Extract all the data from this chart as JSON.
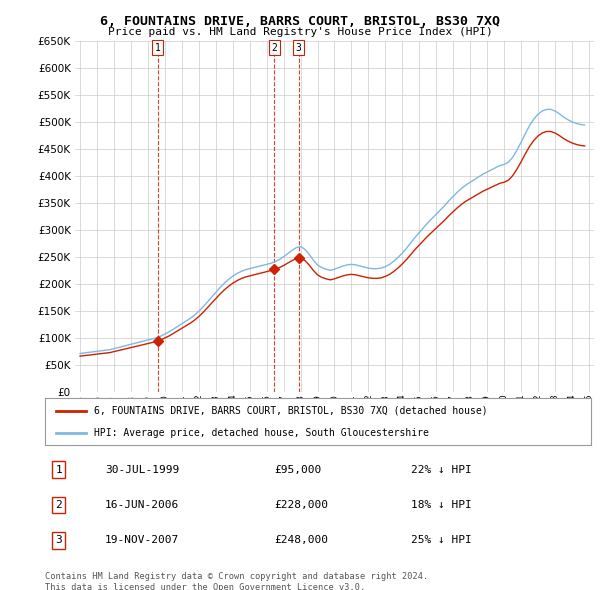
{
  "title": "6, FOUNTAINS DRIVE, BARRS COURT, BRISTOL, BS30 7XQ",
  "subtitle": "Price paid vs. HM Land Registry's House Price Index (HPI)",
  "legend_line1": "6, FOUNTAINS DRIVE, BARRS COURT, BRISTOL, BS30 7XQ (detached house)",
  "legend_line2": "HPI: Average price, detached house, South Gloucestershire",
  "footer1": "Contains HM Land Registry data © Crown copyright and database right 2024.",
  "footer2": "This data is licensed under the Open Government Licence v3.0.",
  "transactions": [
    {
      "num": 1,
      "date": "30-JUL-1999",
      "price": "£95,000",
      "pct": "22% ↓ HPI",
      "year": 1999.58
    },
    {
      "num": 2,
      "date": "16-JUN-2006",
      "price": "£228,000",
      "pct": "18% ↓ HPI",
      "year": 2006.46
    },
    {
      "num": 3,
      "date": "19-NOV-2007",
      "price": "£248,000",
      "pct": "25% ↓ HPI",
      "year": 2007.88
    }
  ],
  "transaction_prices": [
    95000,
    228000,
    248000
  ],
  "ylim": [
    0,
    650000
  ],
  "yticks": [
    0,
    50000,
    100000,
    150000,
    200000,
    250000,
    300000,
    350000,
    400000,
    450000,
    500000,
    550000,
    600000,
    650000
  ],
  "hpi_color": "#7fb8e0",
  "price_color": "#cc2200",
  "dashed_vline_color": "#cc2200",
  "background_color": "#ffffff",
  "grid_color": "#cccccc",
  "years_hpi": [
    1995.0,
    1995.25,
    1995.5,
    1995.75,
    1996.0,
    1996.25,
    1996.5,
    1996.75,
    1997.0,
    1997.25,
    1997.5,
    1997.75,
    1998.0,
    1998.25,
    1998.5,
    1998.75,
    1999.0,
    1999.25,
    1999.5,
    1999.75,
    2000.0,
    2000.25,
    2000.5,
    2000.75,
    2001.0,
    2001.25,
    2001.5,
    2001.75,
    2002.0,
    2002.25,
    2002.5,
    2002.75,
    2003.0,
    2003.25,
    2003.5,
    2003.75,
    2004.0,
    2004.25,
    2004.5,
    2004.75,
    2005.0,
    2005.25,
    2005.5,
    2005.75,
    2006.0,
    2006.25,
    2006.5,
    2006.75,
    2007.0,
    2007.25,
    2007.5,
    2007.75,
    2008.0,
    2008.25,
    2008.5,
    2008.75,
    2009.0,
    2009.25,
    2009.5,
    2009.75,
    2010.0,
    2010.25,
    2010.5,
    2010.75,
    2011.0,
    2011.25,
    2011.5,
    2011.75,
    2012.0,
    2012.25,
    2012.5,
    2012.75,
    2013.0,
    2013.25,
    2013.5,
    2013.75,
    2014.0,
    2014.25,
    2014.5,
    2014.75,
    2015.0,
    2015.25,
    2015.5,
    2015.75,
    2016.0,
    2016.25,
    2016.5,
    2016.75,
    2017.0,
    2017.25,
    2017.5,
    2017.75,
    2018.0,
    2018.25,
    2018.5,
    2018.75,
    2019.0,
    2019.25,
    2019.5,
    2019.75,
    2020.0,
    2020.25,
    2020.5,
    2020.75,
    2021.0,
    2021.25,
    2021.5,
    2021.75,
    2022.0,
    2022.25,
    2022.5,
    2022.75,
    2023.0,
    2023.25,
    2023.5,
    2023.75,
    2024.0,
    2024.25,
    2024.5,
    2024.75
  ],
  "hpi_values": [
    72000,
    73000,
    74000,
    75000,
    76000,
    77000,
    78000,
    79000,
    81000,
    83000,
    85000,
    87000,
    89000,
    91000,
    93000,
    95000,
    97000,
    99000,
    101000,
    104000,
    108000,
    112000,
    117000,
    122000,
    127000,
    132000,
    137000,
    143000,
    150000,
    158000,
    167000,
    176000,
    185000,
    194000,
    202000,
    209000,
    215000,
    220000,
    224000,
    227000,
    229000,
    231000,
    233000,
    235000,
    237000,
    239000,
    242000,
    246000,
    251000,
    257000,
    263000,
    268000,
    270000,
    265000,
    256000,
    245000,
    236000,
    231000,
    228000,
    226000,
    228000,
    231000,
    234000,
    236000,
    237000,
    236000,
    234000,
    232000,
    230000,
    229000,
    229000,
    230000,
    233000,
    237000,
    243000,
    250000,
    258000,
    267000,
    277000,
    287000,
    296000,
    305000,
    314000,
    322000,
    330000,
    338000,
    346000,
    355000,
    363000,
    371000,
    378000,
    384000,
    389000,
    394000,
    399000,
    404000,
    408000,
    412000,
    416000,
    420000,
    422000,
    426000,
    435000,
    448000,
    463000,
    479000,
    494000,
    506000,
    515000,
    521000,
    524000,
    524000,
    521000,
    516000,
    510000,
    505000,
    501000,
    498000,
    496000,
    495000
  ]
}
